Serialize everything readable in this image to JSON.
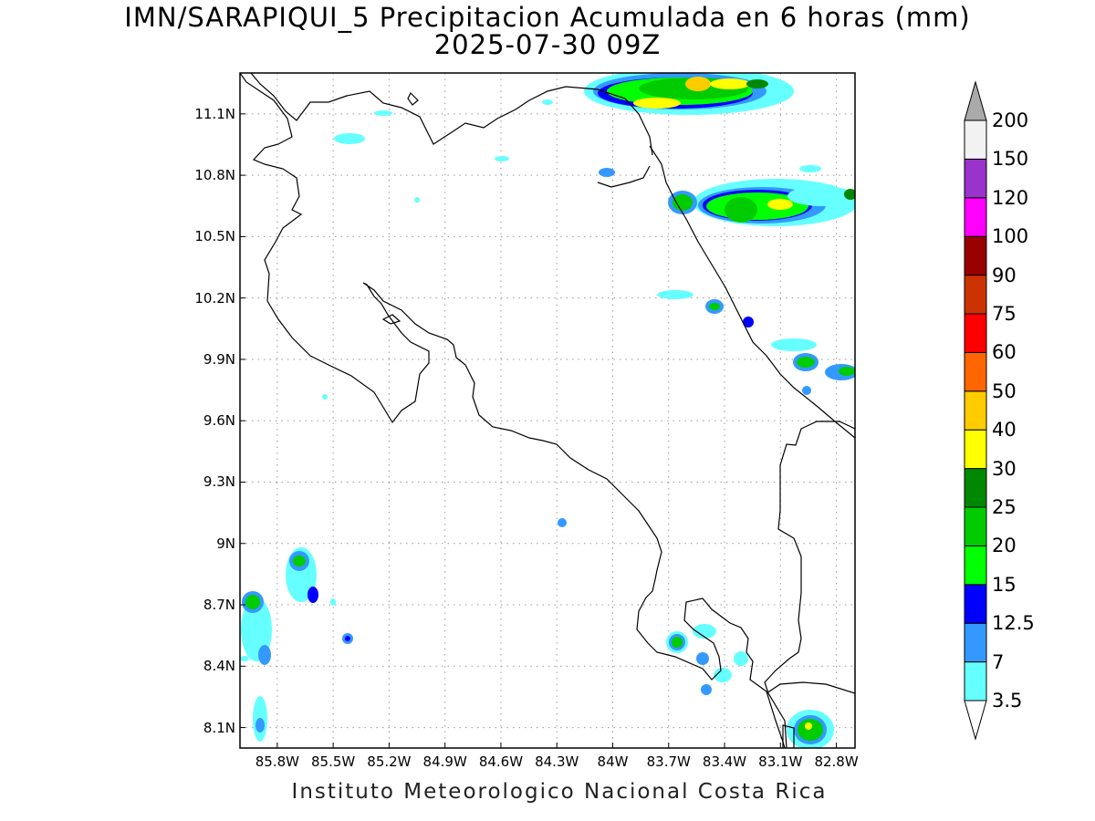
{
  "title": {
    "line1": "IMN/SARAPIQUI_5 Precipitacion Acumulada en 6 horas (mm)",
    "line2": "2025-07-30 09Z"
  },
  "footer": "Instituto Meteorologico Nacional Costa Rica",
  "map": {
    "lon_range": [
      -86.0,
      -82.7
    ],
    "lat_range": [
      8.0,
      11.3
    ],
    "grid": "dotted",
    "y_ticks": [
      "11.1N",
      "10.8N",
      "10.5N",
      "10.2N",
      "9.9N",
      "9.6N",
      "9.3N",
      "9N",
      "8.7N",
      "8.4N",
      "8.1N"
    ],
    "x_ticks": [
      "85.8W",
      "85.5W",
      "85.2W",
      "84.9W",
      "84.6W",
      "84.3W",
      "84W",
      "83.7W",
      "83.4W",
      "83.1W",
      "82.8W"
    ]
  },
  "colorbar": {
    "labels": [
      "3.5",
      "7",
      "12.5",
      "15",
      "20",
      "25",
      "30",
      "40",
      "50",
      "60",
      "75",
      "90",
      "100",
      "120",
      "150",
      "200"
    ],
    "colors": [
      "#66ffff",
      "#3399ff",
      "#0000ff",
      "#00ff00",
      "#00cc00",
      "#008800",
      "#ffff00",
      "#ffcc00",
      "#ff6600",
      "#ff0000",
      "#cc3300",
      "#990000",
      "#ff00ff",
      "#9933cc",
      "#f2f2f2"
    ],
    "high_cap_color": "#aaaaaa",
    "low_cap_color": "#ffffff"
  }
}
